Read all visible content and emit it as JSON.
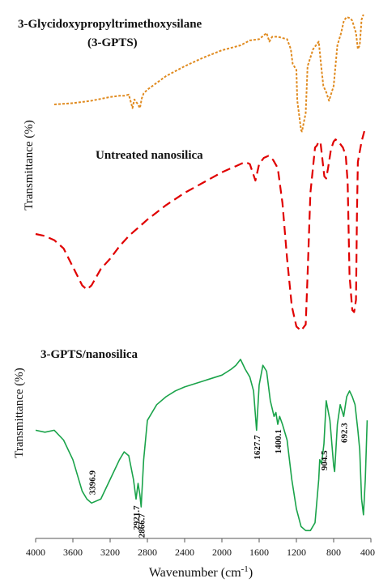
{
  "chart_data": [
    {
      "type": "line",
      "subtype": "ftir-spectra-stacked",
      "ylabel": "Transmittance (%)",
      "x_reversed": true,
      "series": [
        {
          "name": "3-Glycidoxypropyltrimethoxysilane",
          "name_line2": "(3-GPTS)",
          "color": "#e08a1e",
          "style": "dotted",
          "x": [
            3800,
            3600,
            3400,
            3200,
            3100,
            3050,
            3000,
            2960,
            2940,
            2910,
            2880,
            2860,
            2840,
            2800,
            2600,
            2400,
            2200,
            2000,
            1800,
            1700,
            1600,
            1520,
            1490,
            1460,
            1400,
            1300,
            1260,
            1240,
            1200,
            1190,
            1150,
            1140,
            1100,
            1080,
            1020,
            960,
            930,
            910,
            880,
            850,
            800,
            760,
            720,
            690,
            660,
            620,
            600,
            580,
            560,
            540,
            520,
            500,
            480
          ],
          "y": [
            27,
            28,
            30,
            33,
            34,
            34,
            35,
            24,
            31,
            28,
            24,
            32,
            36,
            39,
            50,
            58,
            65,
            71,
            75,
            79,
            80,
            85,
            78,
            82,
            82,
            80,
            72,
            60,
            55,
            30,
            6,
            5,
            20,
            58,
            72,
            78,
            55,
            42,
            37,
            30,
            42,
            75,
            85,
            95,
            98,
            97,
            95,
            90,
            85,
            72,
            75,
            96,
            100
          ]
        },
        {
          "name": "Untreated nanosilica",
          "color": "#e00000",
          "style": "dashed",
          "x": [
            4000,
            3900,
            3800,
            3700,
            3600,
            3500,
            3450,
            3400,
            3300,
            3200,
            3100,
            3000,
            2900,
            2800,
            2600,
            2400,
            2200,
            2000,
            1900,
            1850,
            1800,
            1750,
            1700,
            1640,
            1600,
            1550,
            1500,
            1450,
            1400,
            1350,
            1300,
            1250,
            1200,
            1150,
            1100,
            1080,
            1050,
            1000,
            980,
            960,
            940,
            900,
            880,
            860,
            830,
            800,
            780,
            750,
            700,
            670,
            650,
            630,
            600,
            580,
            560,
            550,
            540,
            500,
            470
          ],
          "y": [
            50,
            49,
            47,
            43,
            34,
            25,
            23,
            25,
            33,
            38,
            44,
            49,
            53,
            57,
            64,
            70,
            75,
            80,
            82,
            83,
            84,
            85,
            84,
            76,
            84,
            87,
            88,
            86,
            82,
            65,
            38,
            15,
            5,
            3,
            6,
            30,
            70,
            92,
            93,
            95,
            94,
            78,
            77,
            82,
            91,
            95,
            96,
            95,
            92,
            88,
            75,
            30,
            13,
            12,
            18,
            60,
            85,
            95,
            100
          ]
        },
        {
          "name": "3-GPTS/nanosilica",
          "color": "#1aa34a",
          "style": "solid",
          "x": [
            4000,
            3900,
            3800,
            3700,
            3600,
            3500,
            3450,
            3400,
            3300,
            3200,
            3100,
            3050,
            3000,
            2950,
            2921.7,
            2900,
            2880,
            2866.7,
            2840,
            2800,
            2700,
            2600,
            2500,
            2400,
            2200,
            2000,
            1900,
            1850,
            1800,
            1750,
            1700,
            1660,
            1627.7,
            1600,
            1560,
            1520,
            1480,
            1440,
            1420,
            1400.1,
            1380,
            1350,
            1300,
            1250,
            1200,
            1150,
            1100,
            1050,
            1000,
            960,
            950,
            930,
            904.5,
            880,
            860,
            840,
            800,
            790,
            760,
            730,
            692.3,
            660,
            630,
            600,
            570,
            540,
            520,
            500,
            480,
            460,
            440
          ],
          "y": [
            55,
            54,
            55,
            50,
            40,
            24,
            20,
            18,
            20,
            30,
            40,
            44,
            42,
            30,
            20,
            28,
            22,
            16,
            40,
            60,
            68,
            72,
            75,
            77,
            80,
            83,
            86,
            88,
            91,
            86,
            82,
            75,
            55,
            78,
            88,
            85,
            70,
            62,
            64,
            58,
            62,
            58,
            50,
            30,
            15,
            6,
            4,
            4,
            8,
            30,
            40,
            38,
            48,
            70,
            65,
            60,
            37,
            34,
            58,
            68,
            62,
            72,
            75,
            72,
            68,
            55,
            45,
            20,
            12,
            30,
            60
          ],
          "peak_labels": [
            "3396.9",
            "2921.7",
            "2866.7",
            "1627.7",
            "1400.1",
            "904.5",
            "692.3"
          ]
        }
      ],
      "xlabel": "Wavenumber (cm",
      "xlabel_sup": "-1",
      "xlabel_end": ")",
      "xlim": [
        4000,
        400
      ],
      "xticks": [
        4000,
        3600,
        3200,
        2800,
        2400,
        2000,
        1600,
        1200,
        800,
        400
      ],
      "grid": false
    }
  ]
}
